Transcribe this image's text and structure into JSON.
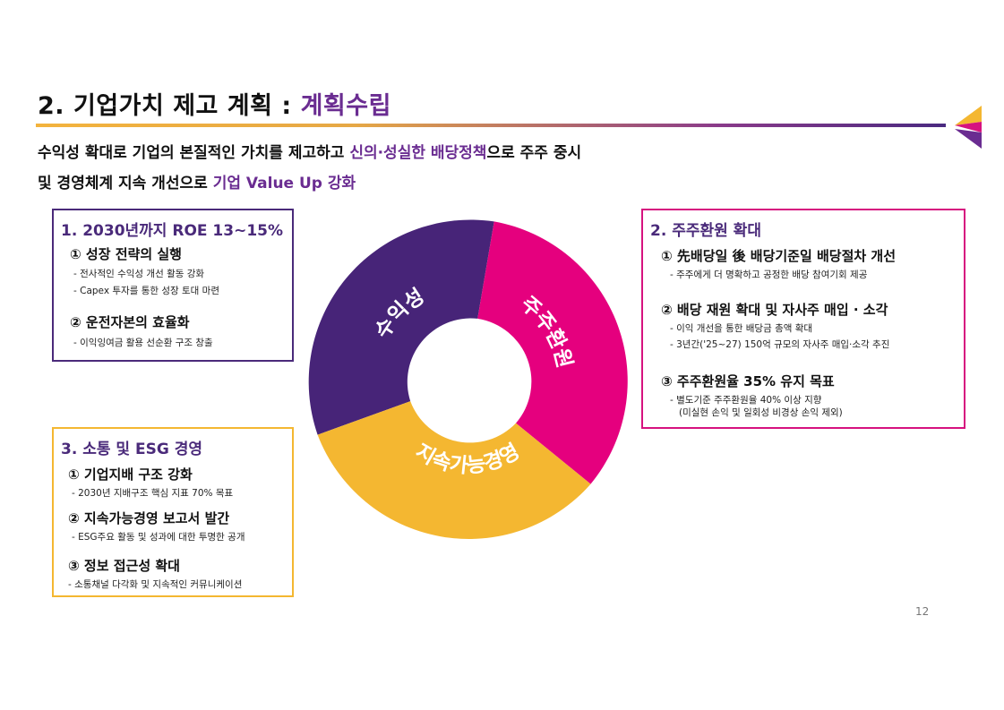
{
  "header": {
    "title_main": "2. 기업가치 제고 계획 : ",
    "title_accent": "계획수립",
    "colors": {
      "accent": "#6a2c91",
      "magenta": "#e5007e",
      "gold": "#f4b731",
      "purple": "#4a2a7a"
    }
  },
  "subtitle": {
    "line1_a": "수익성 확대로 기업의 본질적인 가치를 제고하고 ",
    "line1_hl": "신의·성실한 배당정책",
    "line1_b": "으로 주주 중시",
    "line2_a": "및 경영체계 지속 개선으로 ",
    "line2_hl": "기업 Value Up 강화"
  },
  "panel1": {
    "heading": "1. 2030년까지 ROE 13~15%",
    "items": [
      {
        "title": "① 성장 전략의 실행",
        "desc": [
          "- 전사적인 수익성 개선 활동 강화",
          "- Capex 투자를 통한 성장 토대 마련"
        ]
      },
      {
        "title": "② 운전자본의 효율화",
        "desc": [
          "- 이익잉여금 활용 선순환 구조 창출"
        ]
      }
    ]
  },
  "panel2": {
    "heading": "2. 주주환원 확대",
    "items": [
      {
        "title": "① 先배당일 後 배당기준일 배당절차 개선",
        "desc": [
          "- 주주에게 더 명확하고 공정한 배당 참여기회 제공"
        ]
      },
      {
        "title": "② 배당 재원 확대 및 자사주 매입 · 소각",
        "desc": [
          "- 이익 개선을 통한 배당금 총액 확대",
          "- 3년간('25~27) 150억 규모의 자사주 매입·소각 추진"
        ]
      },
      {
        "title": "③ 주주환원율 35% 유지 목표",
        "desc": [
          "- 별도기준 주주환원율 40% 이상 지향",
          "(미실현 손익 및 일회성 비경상 손익 제외)"
        ]
      }
    ]
  },
  "panel3": {
    "heading": "3. 소통 및 ESG 경영",
    "items": [
      {
        "title": "① 기업지배 구조 강화",
        "desc": [
          "- 2030년 지배구조 핵심 지표 70% 목표"
        ]
      },
      {
        "title": "② 지속가능경영 보고서 발간",
        "desc": [
          "- ESG주요 활동 및 성과에 대한 투명한 공개"
        ]
      },
      {
        "title": "③ 정보 접근성 확대",
        "desc": [
          "-  소통채널 다각화 및 지속적인 커뮤니케이션"
        ]
      }
    ]
  },
  "donut": {
    "segments": [
      {
        "label": "수익성",
        "color": "#472478"
      },
      {
        "label": "주주환원",
        "color": "#e5007e"
      },
      {
        "label": "지속가능경영",
        "color": "#f4b731"
      }
    ]
  },
  "page_number": "12"
}
